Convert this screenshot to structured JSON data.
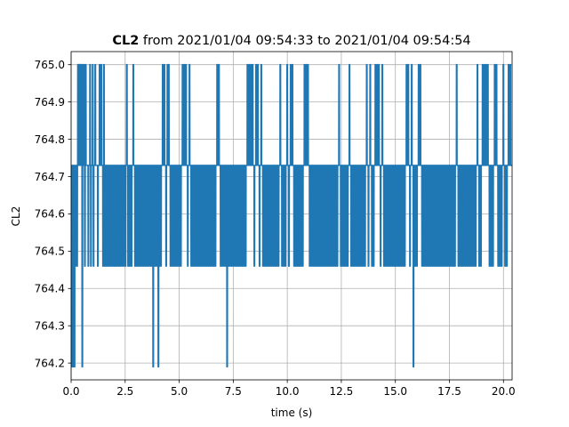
{
  "chart_data": {
    "type": "line",
    "title_bold": "CL2",
    "title_rest": " from 2021/01/04 09:54:33 to 2021/01/04 09:54:54",
    "xlabel": "time (s)",
    "ylabel": "CL2",
    "xlim": [
      0.0,
      20.4
    ],
    "ylim": [
      764.155,
      765.035
    ],
    "xticks": [
      0.0,
      2.5,
      5.0,
      7.5,
      10.0,
      12.5,
      15.0,
      17.5,
      20.0
    ],
    "xtick_labels": [
      "0.0",
      "2.5",
      "5.0",
      "7.5",
      "10.0",
      "12.5",
      "15.0",
      "17.5",
      "20.0"
    ],
    "yticks": [
      764.2,
      764.3,
      764.4,
      764.5,
      764.6,
      764.7,
      764.8,
      764.9,
      765.0
    ],
    "ytick_labels": [
      "764.2",
      "764.3",
      "764.4",
      "764.5",
      "764.6",
      "764.7",
      "764.8",
      "764.9",
      "765.0"
    ],
    "grid": true,
    "series_color": "#1f77b4",
    "series": [
      {
        "x_start": 0.0,
        "x_step": 0.04,
        "levels": [
          764.19,
          764.46,
          764.73,
          765.0
        ],
        "values_base": 764.73,
        "events": [
          [
            0.02,
            0
          ],
          [
            0.08,
            0
          ],
          [
            0.1,
            1
          ],
          [
            0.14,
            0
          ],
          [
            0.18,
            1
          ],
          [
            0.26,
            1
          ],
          [
            0.3,
            3
          ],
          [
            0.34,
            3
          ],
          [
            0.38,
            3
          ],
          [
            0.42,
            3
          ],
          [
            0.46,
            3
          ],
          [
            0.5,
            0
          ],
          [
            0.54,
            3
          ],
          [
            0.58,
            3
          ],
          [
            0.62,
            1
          ],
          [
            0.66,
            3
          ],
          [
            0.7,
            2
          ],
          [
            0.78,
            1
          ],
          [
            0.86,
            3
          ],
          [
            0.9,
            1
          ],
          [
            0.98,
            3
          ],
          [
            1.02,
            1
          ],
          [
            1.1,
            3
          ],
          [
            1.22,
            1
          ],
          [
            1.3,
            3
          ],
          [
            1.38,
            3
          ],
          [
            1.46,
            1
          ],
          [
            1.5,
            3
          ],
          [
            1.54,
            1
          ],
          [
            1.58,
            1
          ],
          [
            1.66,
            1
          ],
          [
            1.74,
            1
          ],
          [
            1.82,
            1
          ],
          [
            1.9,
            1
          ],
          [
            1.98,
            1
          ],
          [
            2.02,
            1
          ],
          [
            2.1,
            1
          ],
          [
            2.18,
            1
          ],
          [
            2.26,
            1
          ],
          [
            2.34,
            1
          ],
          [
            2.42,
            1
          ],
          [
            2.5,
            1
          ],
          [
            2.56,
            3
          ],
          [
            2.62,
            1
          ],
          [
            2.7,
            1
          ],
          [
            2.78,
            1
          ],
          [
            2.86,
            3
          ],
          [
            2.94,
            1
          ],
          [
            3.02,
            1
          ],
          [
            3.1,
            1
          ],
          [
            3.18,
            1
          ],
          [
            3.26,
            1
          ],
          [
            3.34,
            1
          ],
          [
            3.42,
            1
          ],
          [
            3.5,
            1
          ],
          [
            3.58,
            1
          ],
          [
            3.66,
            1
          ],
          [
            3.74,
            1
          ],
          [
            3.78,
            0
          ],
          [
            3.82,
            1
          ],
          [
            3.9,
            1
          ],
          [
            3.98,
            1
          ],
          [
            4.02,
            0
          ],
          [
            4.06,
            1
          ],
          [
            4.14,
            1
          ],
          [
            4.22,
            3
          ],
          [
            4.3,
            3
          ],
          [
            4.38,
            1
          ],
          [
            4.44,
            3
          ],
          [
            4.5,
            3
          ],
          [
            4.58,
            1
          ],
          [
            4.66,
            1
          ],
          [
            4.74,
            1
          ],
          [
            4.82,
            1
          ],
          [
            4.9,
            1
          ],
          [
            4.98,
            1
          ],
          [
            5.06,
            1
          ],
          [
            5.14,
            3
          ],
          [
            5.22,
            3
          ],
          [
            5.3,
            3
          ],
          [
            5.38,
            1
          ],
          [
            5.46,
            3
          ],
          [
            5.54,
            1
          ],
          [
            5.62,
            1
          ],
          [
            5.7,
            1
          ],
          [
            5.78,
            1
          ],
          [
            5.86,
            1
          ],
          [
            5.94,
            1
          ],
          [
            6.02,
            1
          ],
          [
            6.1,
            1
          ],
          [
            6.18,
            1
          ],
          [
            6.26,
            1
          ],
          [
            6.34,
            1
          ],
          [
            6.42,
            1
          ],
          [
            6.5,
            1
          ],
          [
            6.58,
            1
          ],
          [
            6.66,
            1
          ],
          [
            6.74,
            3
          ],
          [
            6.82,
            3
          ],
          [
            6.9,
            1
          ],
          [
            6.98,
            1
          ],
          [
            7.06,
            1
          ],
          [
            7.14,
            1
          ],
          [
            7.2,
            0
          ],
          [
            7.26,
            1
          ],
          [
            7.34,
            1
          ],
          [
            7.42,
            1
          ],
          [
            7.5,
            1
          ],
          [
            7.58,
            1
          ],
          [
            7.66,
            1
          ],
          [
            7.74,
            1
          ],
          [
            7.82,
            1
          ],
          [
            7.9,
            1
          ],
          [
            7.98,
            1
          ],
          [
            8.06,
            1
          ],
          [
            8.14,
            3
          ],
          [
            8.22,
            3
          ],
          [
            8.3,
            3
          ],
          [
            8.38,
            3
          ],
          [
            8.46,
            1
          ],
          [
            8.54,
            3
          ],
          [
            8.62,
            3
          ],
          [
            8.7,
            1
          ],
          [
            8.78,
            3
          ],
          [
            8.86,
            1
          ],
          [
            8.94,
            1
          ],
          [
            9.02,
            1
          ],
          [
            9.1,
            1
          ],
          [
            9.18,
            1
          ],
          [
            9.26,
            1
          ],
          [
            9.34,
            1
          ],
          [
            9.42,
            1
          ],
          [
            9.5,
            1
          ],
          [
            9.58,
            1
          ],
          [
            9.66,
            3
          ],
          [
            9.74,
            1
          ],
          [
            9.82,
            1
          ],
          [
            9.9,
            1
          ],
          [
            9.98,
            3
          ],
          [
            10.06,
            1
          ],
          [
            10.14,
            3
          ],
          [
            10.22,
            3
          ],
          [
            10.3,
            1
          ],
          [
            10.38,
            1
          ],
          [
            10.46,
            1
          ],
          [
            10.54,
            1
          ],
          [
            10.62,
            1
          ],
          [
            10.7,
            1
          ],
          [
            10.78,
            3
          ],
          [
            10.86,
            3
          ],
          [
            10.94,
            3
          ],
          [
            11.02,
            1
          ],
          [
            11.1,
            1
          ],
          [
            11.18,
            1
          ],
          [
            11.26,
            1
          ],
          [
            11.34,
            1
          ],
          [
            11.42,
            1
          ],
          [
            11.5,
            1
          ],
          [
            11.58,
            1
          ],
          [
            11.66,
            1
          ],
          [
            11.74,
            1
          ],
          [
            11.82,
            1
          ],
          [
            11.9,
            1
          ],
          [
            11.98,
            1
          ],
          [
            12.06,
            1
          ],
          [
            12.14,
            1
          ],
          [
            12.22,
            1
          ],
          [
            12.3,
            1
          ],
          [
            12.38,
            3
          ],
          [
            12.46,
            1
          ],
          [
            12.54,
            1
          ],
          [
            12.62,
            1
          ],
          [
            12.7,
            1
          ],
          [
            12.78,
            1
          ],
          [
            12.86,
            3
          ],
          [
            12.94,
            1
          ],
          [
            13.02,
            1
          ],
          [
            13.1,
            1
          ],
          [
            13.18,
            1
          ],
          [
            13.26,
            1
          ],
          [
            13.34,
            1
          ],
          [
            13.42,
            1
          ],
          [
            13.5,
            1
          ],
          [
            13.58,
            1
          ],
          [
            13.66,
            3
          ],
          [
            13.74,
            1
          ],
          [
            13.82,
            3
          ],
          [
            13.9,
            1
          ],
          [
            13.98,
            1
          ],
          [
            14.06,
            3
          ],
          [
            14.14,
            3
          ],
          [
            14.22,
            3
          ],
          [
            14.3,
            1
          ],
          [
            14.38,
            3
          ],
          [
            14.46,
            1
          ],
          [
            14.54,
            1
          ],
          [
            14.62,
            1
          ],
          [
            14.7,
            1
          ],
          [
            14.78,
            1
          ],
          [
            14.86,
            1
          ],
          [
            14.94,
            1
          ],
          [
            15.02,
            1
          ],
          [
            15.1,
            1
          ],
          [
            15.18,
            1
          ],
          [
            15.26,
            1
          ],
          [
            15.34,
            1
          ],
          [
            15.42,
            1
          ],
          [
            15.5,
            3
          ],
          [
            15.58,
            3
          ],
          [
            15.66,
            1
          ],
          [
            15.74,
            3
          ],
          [
            15.82,
            0
          ],
          [
            15.9,
            1
          ],
          [
            15.98,
            1
          ],
          [
            16.06,
            3
          ],
          [
            16.14,
            3
          ],
          [
            16.22,
            1
          ],
          [
            16.3,
            1
          ],
          [
            16.38,
            1
          ],
          [
            16.46,
            1
          ],
          [
            16.54,
            1
          ],
          [
            16.62,
            1
          ],
          [
            16.7,
            1
          ],
          [
            16.78,
            1
          ],
          [
            16.86,
            1
          ],
          [
            16.94,
            1
          ],
          [
            17.02,
            1
          ],
          [
            17.1,
            1
          ],
          [
            17.18,
            1
          ],
          [
            17.26,
            1
          ],
          [
            17.34,
            1
          ],
          [
            17.42,
            1
          ],
          [
            17.5,
            1
          ],
          [
            17.58,
            1
          ],
          [
            17.66,
            1
          ],
          [
            17.74,
            1
          ],
          [
            17.82,
            3
          ],
          [
            17.9,
            1
          ],
          [
            17.98,
            1
          ],
          [
            18.06,
            1
          ],
          [
            18.14,
            1
          ],
          [
            18.22,
            1
          ],
          [
            18.3,
            1
          ],
          [
            18.38,
            1
          ],
          [
            18.46,
            1
          ],
          [
            18.54,
            1
          ],
          [
            18.62,
            1
          ],
          [
            18.7,
            1
          ],
          [
            18.78,
            3
          ],
          [
            18.86,
            1
          ],
          [
            18.94,
            1
          ],
          [
            19.02,
            3
          ],
          [
            19.1,
            3
          ],
          [
            19.18,
            3
          ],
          [
            19.26,
            3
          ],
          [
            19.34,
            1
          ],
          [
            19.42,
            1
          ],
          [
            19.5,
            1
          ],
          [
            19.58,
            3
          ],
          [
            19.66,
            3
          ],
          [
            19.74,
            1
          ],
          [
            19.82,
            1
          ],
          [
            19.9,
            1
          ],
          [
            19.98,
            3
          ],
          [
            20.06,
            1
          ],
          [
            20.14,
            1
          ],
          [
            20.22,
            3
          ],
          [
            20.3,
            3
          ]
        ]
      }
    ]
  }
}
